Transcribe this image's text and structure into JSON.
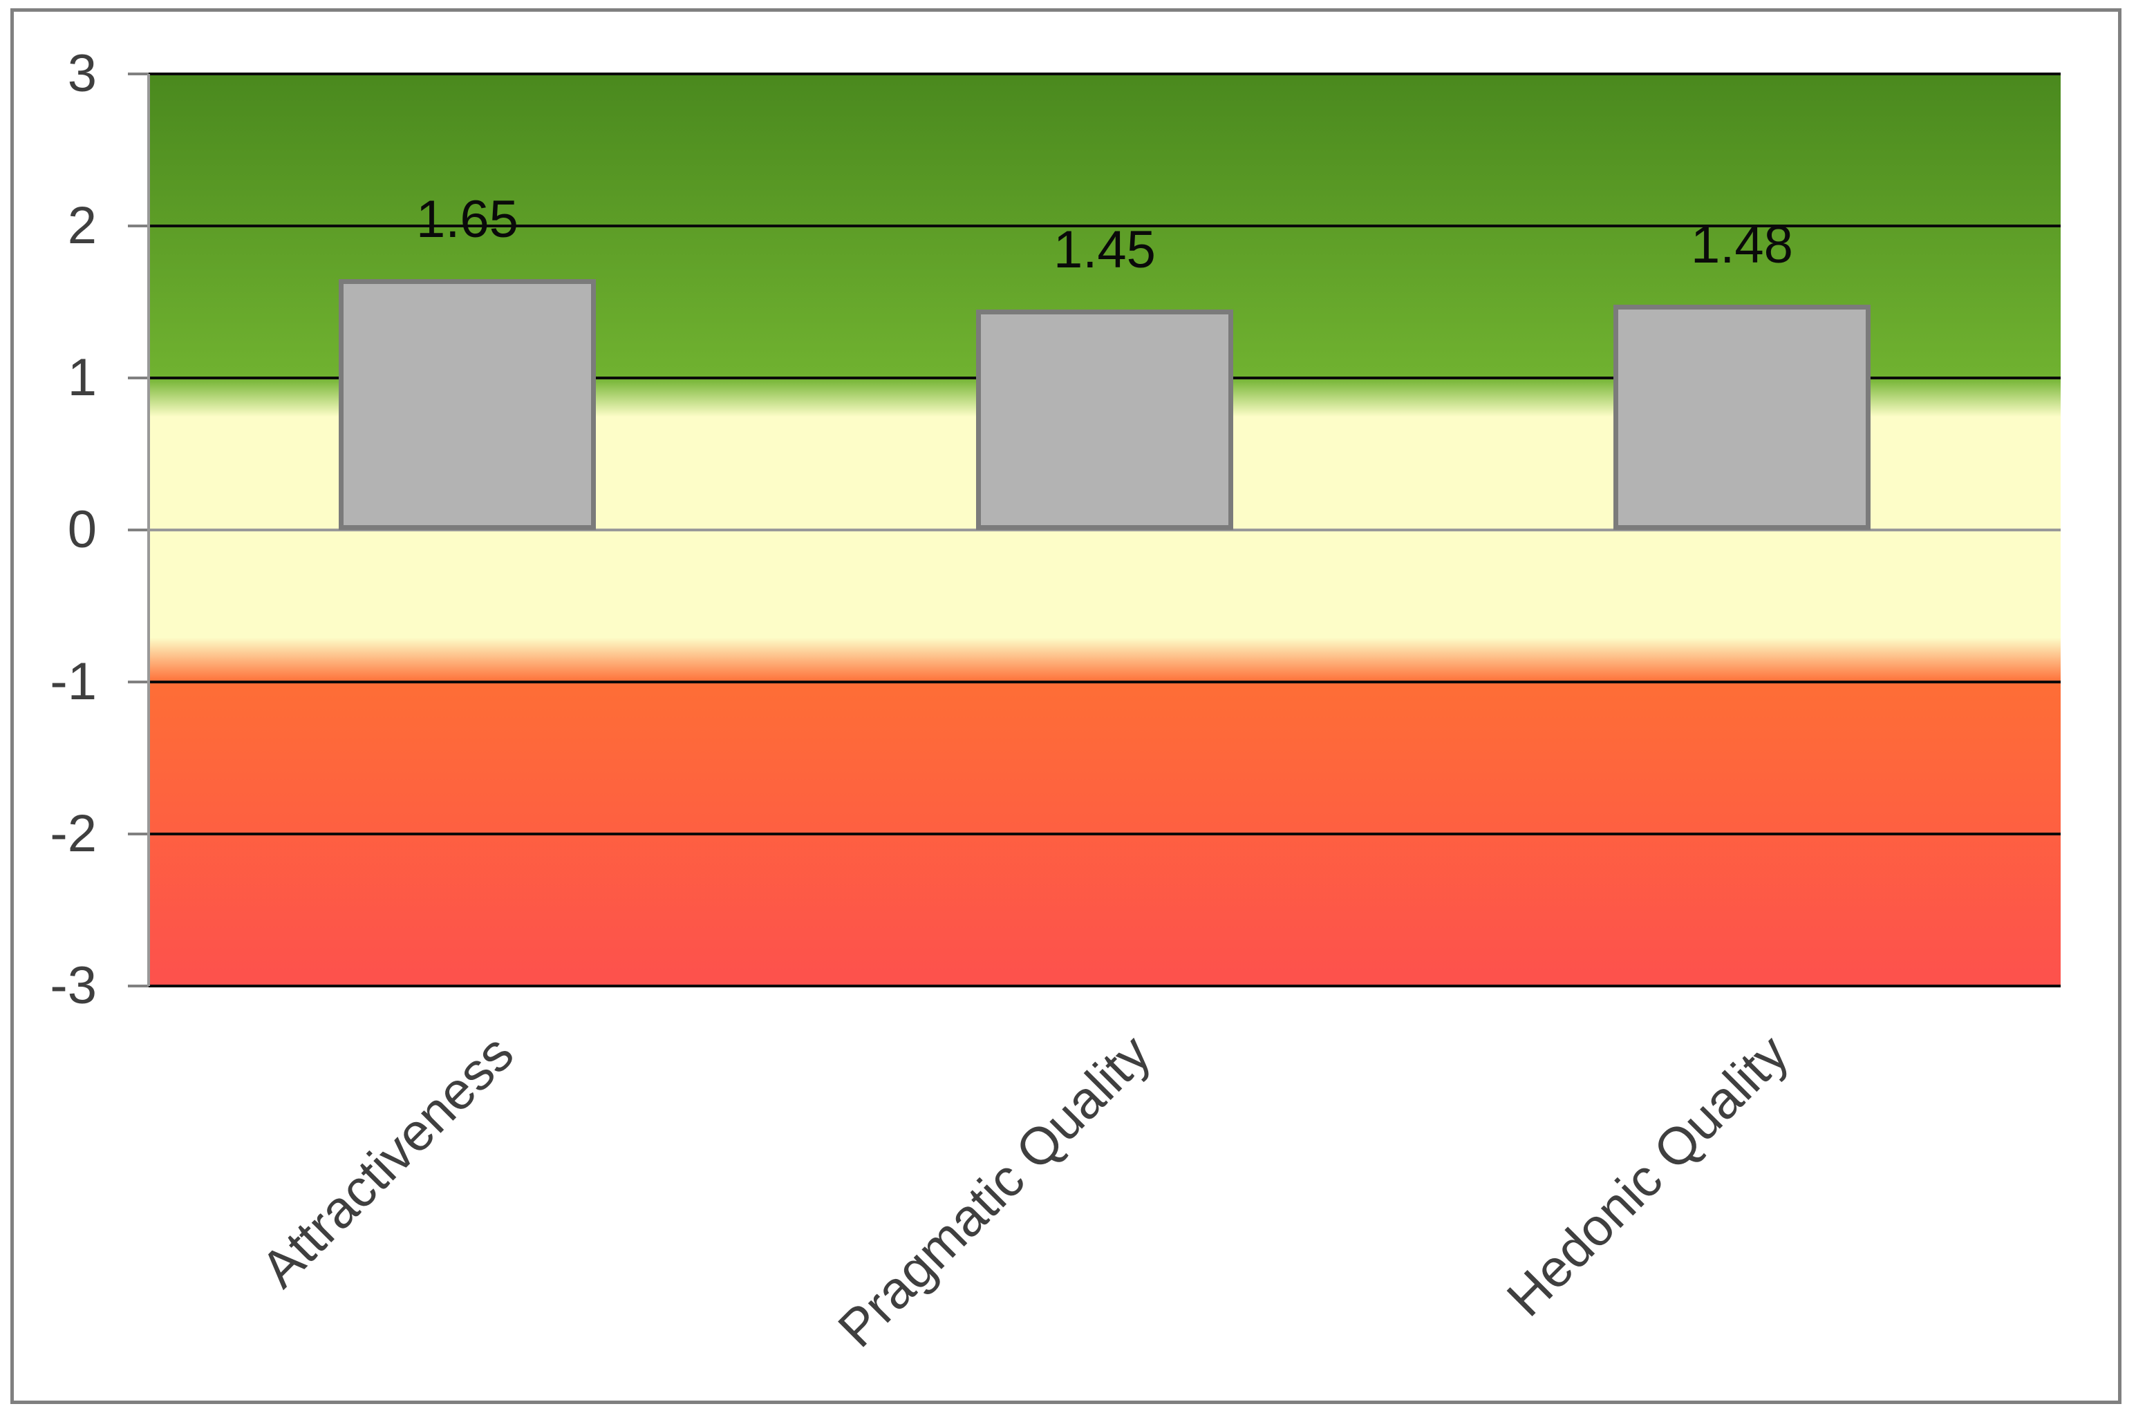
{
  "chart_data": {
    "type": "bar",
    "title": "",
    "xlabel": "",
    "ylabel": "",
    "categories": [
      "Attractiveness",
      "Pragmatic Quality",
      "Hedonic Quality"
    ],
    "values": [
      1.65,
      1.45,
      1.48
    ],
    "value_labels": [
      "1.65",
      "1.45",
      "1.48"
    ],
    "ylim": [
      -3,
      3
    ],
    "yticks": [
      3,
      2,
      1,
      0,
      -1,
      -2,
      -3
    ],
    "ytick_labels": [
      "3",
      "2",
      "1",
      "0",
      "-1",
      "-2",
      "-3"
    ],
    "grid": "horizontal gridlines at every integer, black; zero line gray",
    "legend_position": "none",
    "background_bands": [
      {
        "range": [
          1,
          3
        ],
        "meaning": "positive zone",
        "color_top": "#4a891e",
        "color_bottom": "#70b230"
      },
      {
        "range": [
          -1,
          1
        ],
        "meaning": "neutral zone",
        "color": "#fdfdc8"
      },
      {
        "range": [
          -3,
          -1
        ],
        "meaning": "negative zone",
        "color_top": "#fe6e36",
        "color_bottom": "#fd514d"
      }
    ],
    "colors": {
      "bar_fill": "#b3b3b3",
      "bar_border": "#7b7b7b",
      "gridline": "#0a0a0a",
      "zero_line": "#999999",
      "axis_line": "#999999",
      "tick": "#808080",
      "axis_text": "#3f3f3f",
      "value_label_text": "#0a0a0a",
      "frame_border": "#808080",
      "page_background": "#ffffff"
    }
  }
}
